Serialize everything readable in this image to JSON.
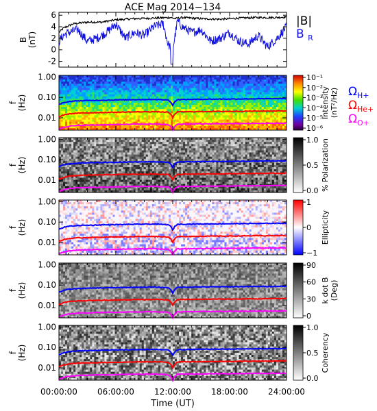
{
  "chart_data": {
    "title": "ACE Mag 2014−134",
    "xlabel": "Time (UT)",
    "x_ticks": [
      "00:00:00",
      "06:00:00",
      "12:00:00",
      "18:00:00",
      "24:00:00"
    ],
    "x_range_hours": [
      0,
      24
    ],
    "colors": {
      "b_total": "#000000",
      "b_r": "#1010e0",
      "h_plus": "#0000ff",
      "he_plus": "#ff0000",
      "o_plus": "#ff00ff"
    },
    "panels": [
      {
        "type": "line",
        "ylabel": [
          "B",
          "(nT)"
        ],
        "ylim": [
          -3,
          6.5
        ],
        "y_ticks": [
          -2,
          0,
          2,
          4,
          6
        ],
        "legend": [
          "|B|",
          "B",
          "R"
        ],
        "series": [
          {
            "name": "|B|",
            "x": [
              0,
              0.5,
              1.5,
              3,
              4.5,
              6,
              8,
              10,
              11.8,
              12.2,
              13,
              15,
              17,
              19,
              21,
              23,
              24
            ],
            "values": [
              3.0,
              3.8,
              4.5,
              4.8,
              4.8,
              5.2,
              5.4,
              5.5,
              5.6,
              5.4,
              5.6,
              5.4,
              5.3,
              5.5,
              5.6,
              5.6,
              5.7
            ]
          },
          {
            "name": "B_R",
            "x": [
              0,
              0.5,
              1,
              2,
              3,
              4,
              5,
              6,
              7,
              8,
              9,
              10,
              11,
              11.5,
              12,
              12.5,
              13,
              14,
              15,
              16,
              17,
              18,
              19,
              20,
              21,
              22,
              23,
              24
            ],
            "values": [
              1.5,
              2.5,
              3.0,
              3.5,
              1.5,
              2.0,
              3.0,
              4.5,
              2.0,
              3.0,
              2.5,
              4.0,
              4.5,
              1.0,
              0.0,
              5.0,
              4.0,
              3.0,
              3.5,
              1.5,
              2.0,
              3.0,
              1.5,
              1.0,
              2.5,
              0.5,
              2.0,
              4.0
            ]
          }
        ]
      },
      {
        "type": "heatmap",
        "ylabel": [
          "f",
          "(Hz)"
        ],
        "y_ticks": [
          "1.00",
          "0.10",
          "0.01"
        ],
        "colorbar": {
          "label": [
            "Intensity",
            "(nT²/Hz)"
          ],
          "ticks": [
            "10⁻¹",
            "10⁻²",
            "10⁻³",
            "10⁻⁴",
            "10⁻⁵",
            "10⁻⁶"
          ]
        },
        "legend": [
          {
            "symbol": "Ω",
            "sub": "H+"
          },
          {
            "symbol": "Ω",
            "sub": "He+"
          },
          {
            "symbol": "Ω",
            "sub": "O+"
          }
        ]
      },
      {
        "type": "heatmap",
        "ylabel": [
          "f",
          "(Hz)"
        ],
        "y_ticks": [
          "1.00",
          "0.10",
          "0.01"
        ],
        "colorbar": {
          "label": [
            "% Polarization"
          ],
          "ticks": [
            "1.0",
            "0.5",
            "0.0"
          ]
        }
      },
      {
        "type": "heatmap",
        "ylabel": [
          "f",
          "(Hz)"
        ],
        "y_ticks": [
          "1.00",
          "0.10",
          "0.01"
        ],
        "colorbar": {
          "label": [
            "Ellipticity"
          ],
          "ticks": [
            "1",
            "0",
            "−1"
          ]
        }
      },
      {
        "type": "heatmap",
        "ylabel": [
          "f",
          "(Hz)"
        ],
        "y_ticks": [
          "1.00",
          "0.10",
          "0.01"
        ],
        "colorbar": {
          "label": [
            "k dot B",
            "(Deg)"
          ],
          "ticks": [
            "90",
            "60",
            "30",
            "0"
          ]
        }
      },
      {
        "type": "heatmap",
        "ylabel": [
          "f",
          "(Hz)"
        ],
        "y_ticks": [
          "1.00",
          "0.10",
          "0.01"
        ],
        "colorbar": {
          "label": [
            "Coherency"
          ],
          "ticks": [
            "1.0",
            "0.5",
            "0.0"
          ]
        }
      }
    ],
    "gyrofrequency_lines": {
      "x": [
        0,
        0.5,
        1,
        2,
        4,
        6,
        8,
        10,
        11.5,
        11.8,
        12,
        12.2,
        12.5,
        14,
        16,
        18,
        20,
        22,
        24
      ],
      "h_plus_hz": [
        0.045,
        0.055,
        0.062,
        0.068,
        0.072,
        0.075,
        0.078,
        0.08,
        0.075,
        0.06,
        0.04,
        0.06,
        0.078,
        0.08,
        0.082,
        0.083,
        0.085,
        0.086,
        0.088
      ]
    }
  }
}
